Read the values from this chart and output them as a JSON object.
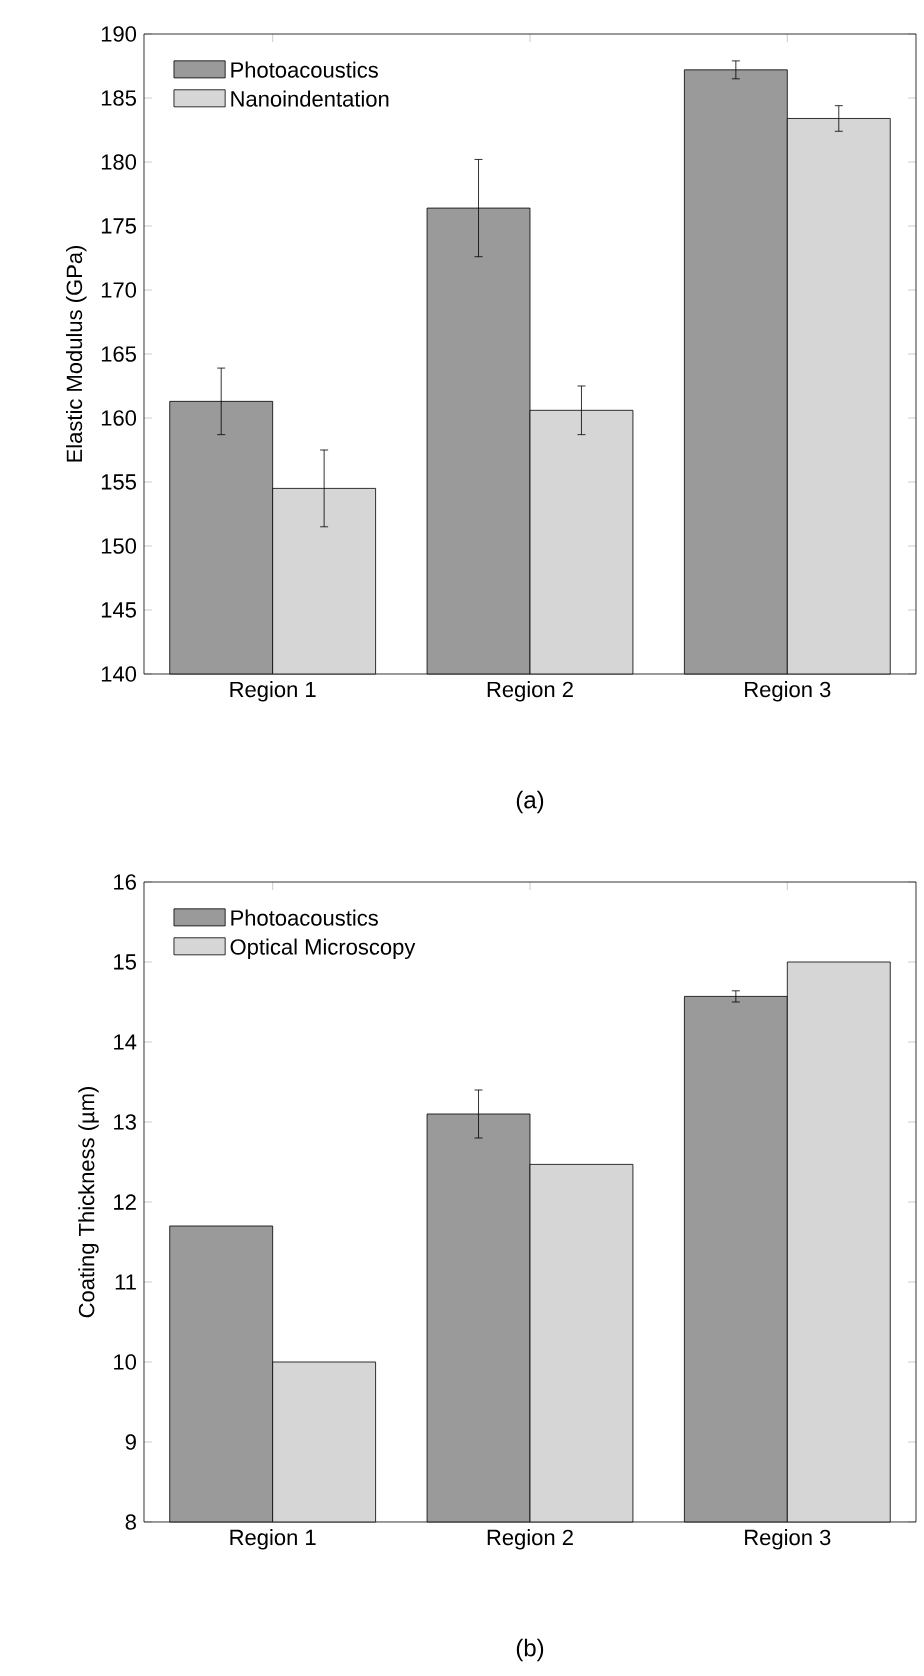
{
  "chart_data": [
    {
      "type": "bar",
      "ylabel": "Elastic Modulus (GPa)",
      "categories": [
        "Region 1",
        "Region 2",
        "Region 3"
      ],
      "ylim": [
        140,
        190
      ],
      "yticks": [
        140,
        145,
        150,
        155,
        160,
        165,
        170,
        175,
        180,
        185,
        190
      ],
      "legend": "top left",
      "annotations": [
        "(a)"
      ],
      "series": [
        {
          "name": "Photoacoustics",
          "color": "#9a9a9a",
          "values": [
            161.3,
            176.4,
            187.2
          ],
          "errors": [
            2.6,
            3.8,
            0.7
          ]
        },
        {
          "name": "Nanoindentation",
          "color": "#d6d6d6",
          "values": [
            154.5,
            160.6,
            183.4
          ],
          "errors": [
            3.0,
            1.9,
            1.0
          ]
        }
      ]
    },
    {
      "type": "bar",
      "ylabel": "Coating Thickness (µm)",
      "categories": [
        "Region 1",
        "Region 2",
        "Region 3"
      ],
      "ylim": [
        8,
        16
      ],
      "yticks": [
        8,
        9,
        10,
        11,
        12,
        13,
        14,
        15,
        16
      ],
      "legend": "top left",
      "annotations": [
        "(b)"
      ],
      "series": [
        {
          "name": "Photoacoustics",
          "color": "#9a9a9a",
          "values": [
            11.7,
            13.1,
            14.57
          ],
          "errors": [
            null,
            0.3,
            0.07
          ]
        },
        {
          "name": "Optical Microscopy",
          "color": "#d6d6d6",
          "values": [
            10.0,
            12.47,
            15.0
          ]
        }
      ]
    }
  ]
}
